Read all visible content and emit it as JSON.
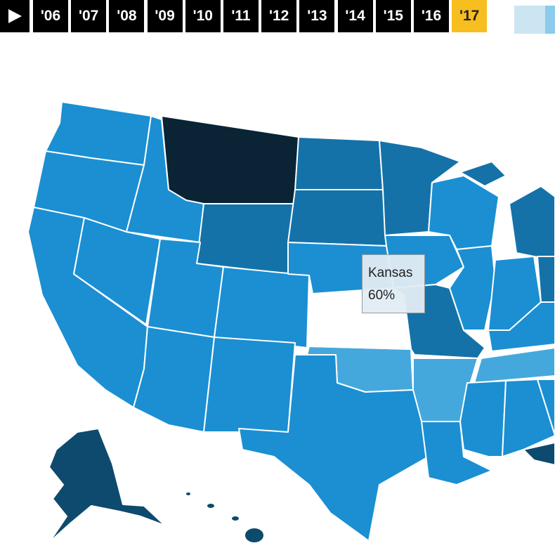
{
  "timeline": {
    "years": [
      "'06",
      "'07",
      "'08",
      "'09",
      "'10",
      "'11",
      "'12",
      "'13",
      "'14",
      "'15",
      "'16",
      "'17"
    ],
    "selected": 11
  },
  "tooltip": {
    "state": "Kansas",
    "value": "60%"
  }
}
